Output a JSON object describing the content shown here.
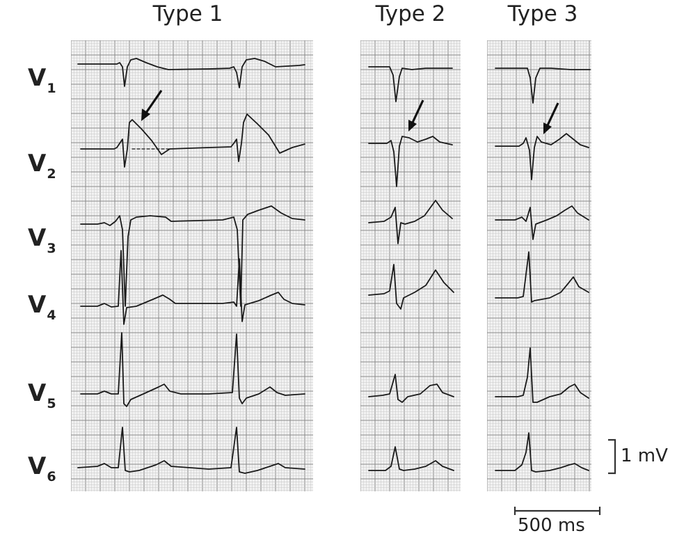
{
  "titles": {
    "type1": "Type 1",
    "type2": "Type 2",
    "type3": "Type 3"
  },
  "leads": [
    {
      "main": "V",
      "sub": "1"
    },
    {
      "main": "V",
      "sub": "2"
    },
    {
      "main": "V",
      "sub": "3"
    },
    {
      "main": "V",
      "sub": "4"
    },
    {
      "main": "V",
      "sub": "5"
    },
    {
      "main": "V",
      "sub": "6"
    }
  ],
  "scale": {
    "voltage": "1 mV",
    "time": "500 ms"
  },
  "colors": {
    "trace": "#1a1a1a",
    "grid_minor": "#c8c8c8",
    "grid_major": "#8a8a8a",
    "paper": "#f2f2f2"
  }
}
